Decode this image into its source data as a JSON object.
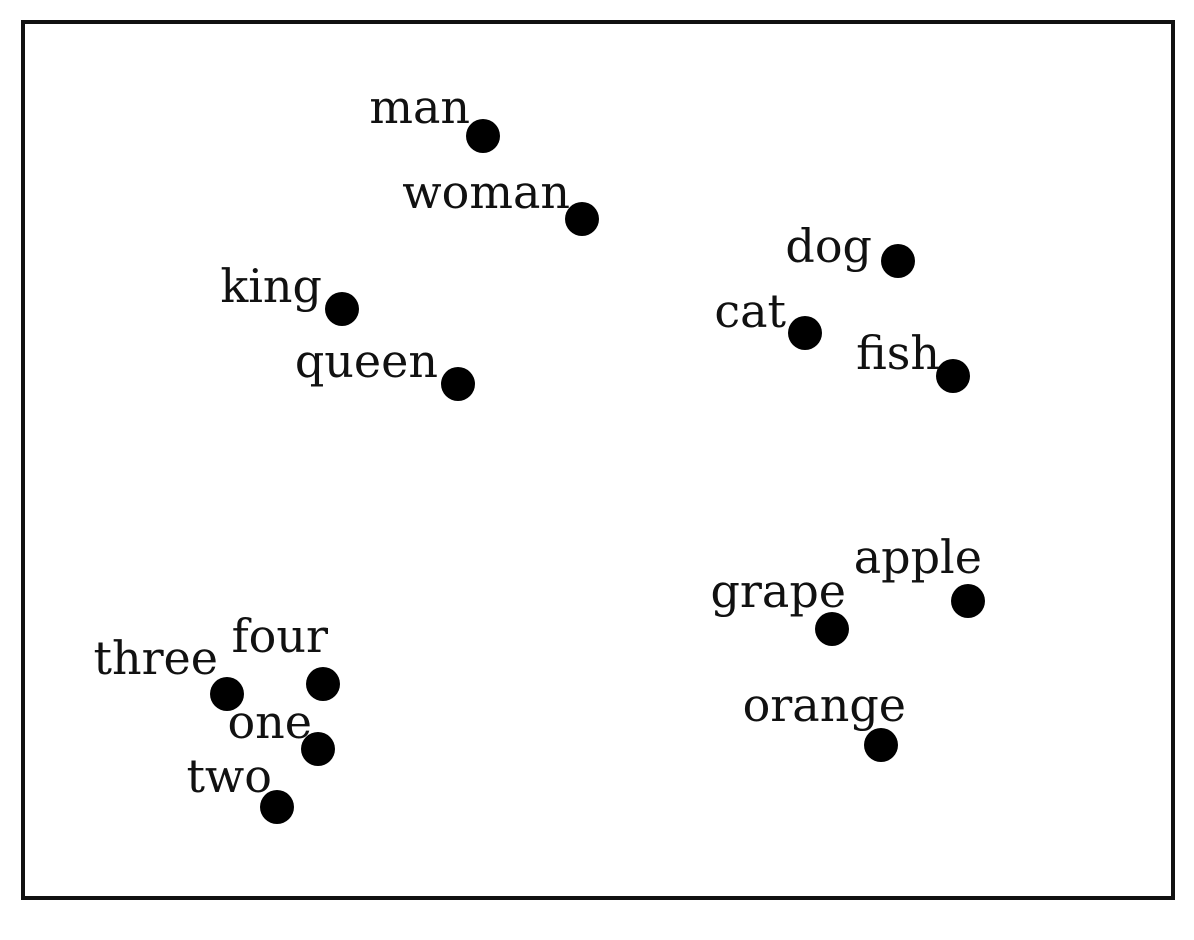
{
  "colors": {
    "background": "#ffffff",
    "frame": "#111111",
    "point": "#000000",
    "text": "#111111"
  },
  "words": [
    {
      "label": "man"
    },
    {
      "label": "woman"
    },
    {
      "label": "king"
    },
    {
      "label": "queen"
    },
    {
      "label": "dog"
    },
    {
      "label": "cat"
    },
    {
      "label": "fish"
    },
    {
      "label": "apple"
    },
    {
      "label": "grape"
    },
    {
      "label": "orange"
    },
    {
      "label": "three"
    },
    {
      "label": "four"
    },
    {
      "label": "one"
    },
    {
      "label": "two"
    }
  ]
}
